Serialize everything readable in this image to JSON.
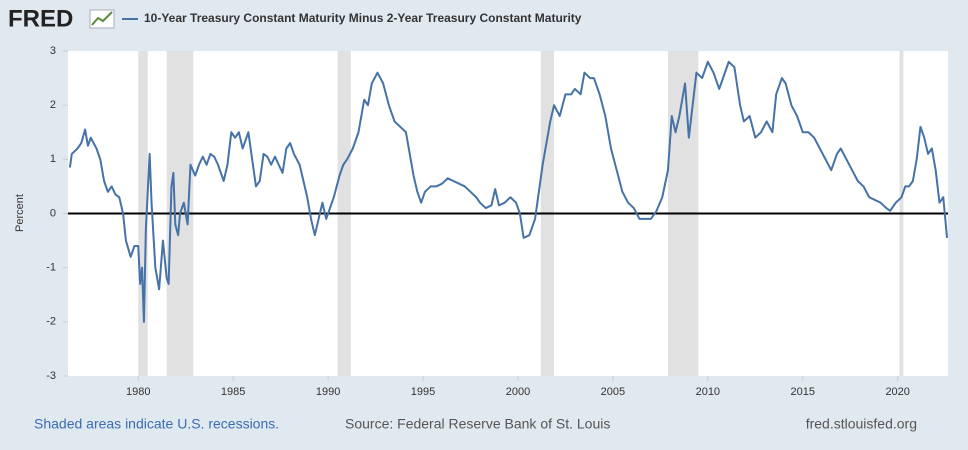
{
  "chart_data": {
    "type": "line",
    "logo": "FRED",
    "ylabel": "Percent",
    "footnote": "Shaded areas indicate U.S. recessions.",
    "source": "Source: Federal Reserve Bank of St. Louis",
    "website": "fred.stlouisfed.org",
    "xlim": [
      1976.3,
      2022.65
    ],
    "ylim": [
      -3,
      3
    ],
    "xticks": [
      1980,
      1985,
      1990,
      1995,
      2000,
      2005,
      2010,
      2015,
      2020
    ],
    "yticks": [
      -3,
      -2,
      -1,
      0,
      1,
      2,
      3
    ],
    "grid": false,
    "recessions": [
      [
        1980.0,
        1980.5
      ],
      [
        1981.5,
        1982.9
      ],
      [
        1990.5,
        1991.2
      ],
      [
        2001.2,
        2001.9
      ],
      [
        2007.9,
        2009.5
      ],
      [
        2020.1,
        2020.3
      ]
    ],
    "x": [
      1976.4,
      1976.5,
      1976.8,
      1977.0,
      1977.2,
      1977.35,
      1977.5,
      1977.8,
      1978.0,
      1978.2,
      1978.4,
      1978.6,
      1978.8,
      1979.0,
      1979.2,
      1979.35,
      1979.6,
      1979.8,
      1980.0,
      1980.1,
      1980.2,
      1980.3,
      1980.4,
      1980.6,
      1980.7,
      1980.9,
      1981.1,
      1981.3,
      1981.5,
      1981.6,
      1981.75,
      1981.85,
      1981.95,
      1982.1,
      1982.2,
      1982.4,
      1982.6,
      1982.75,
      1983.0,
      1983.2,
      1983.4,
      1983.6,
      1983.8,
      1984.0,
      1984.2,
      1984.5,
      1984.7,
      1984.9,
      1985.1,
      1985.3,
      1985.5,
      1985.8,
      1986.0,
      1986.2,
      1986.4,
      1986.6,
      1986.8,
      1987.0,
      1987.2,
      1987.4,
      1987.6,
      1987.8,
      1988.0,
      1988.2,
      1988.5,
      1988.7,
      1988.9,
      1989.1,
      1989.3,
      1989.5,
      1989.7,
      1989.9,
      1990.1,
      1990.3,
      1990.6,
      1990.8,
      1991.0,
      1991.3,
      1991.6,
      1991.9,
      1992.1,
      1992.3,
      1992.6,
      1992.9,
      1993.2,
      1993.5,
      1993.8,
      1994.1,
      1994.3,
      1994.5,
      1994.7,
      1994.9,
      1995.1,
      1995.4,
      1995.7,
      1996.0,
      1996.3,
      1996.6,
      1996.9,
      1997.2,
      1997.5,
      1997.8,
      1998.0,
      1998.3,
      1998.6,
      1998.8,
      1999.0,
      1999.3,
      1999.6,
      1999.9,
      2000.1,
      2000.3,
      2000.6,
      2000.9,
      2001.1,
      2001.3,
      2001.5,
      2001.7,
      2001.9,
      2002.2,
      2002.5,
      2002.8,
      2003.0,
      2003.3,
      2003.5,
      2003.8,
      2004.0,
      2004.3,
      2004.6,
      2004.9,
      2005.2,
      2005.5,
      2005.8,
      2006.1,
      2006.4,
      2006.7,
      2007.0,
      2007.3,
      2007.6,
      2007.9,
      2008.1,
      2008.3,
      2008.5,
      2008.8,
      2009.0,
      2009.2,
      2009.4,
      2009.7,
      2010.0,
      2010.3,
      2010.6,
      2010.9,
      2011.1,
      2011.4,
      2011.7,
      2011.9,
      2012.2,
      2012.5,
      2012.8,
      2013.1,
      2013.4,
      2013.6,
      2013.9,
      2014.1,
      2014.4,
      2014.7,
      2015.0,
      2015.3,
      2015.6,
      2015.9,
      2016.2,
      2016.5,
      2016.8,
      2017.0,
      2017.3,
      2017.6,
      2017.9,
      2018.2,
      2018.5,
      2018.8,
      2019.1,
      2019.4,
      2019.6,
      2019.9,
      2020.2,
      2020.4,
      2020.6,
      2020.8,
      2021.0,
      2021.2,
      2021.4,
      2021.6,
      2021.8,
      2022.0,
      2022.2,
      2022.4,
      2022.6
    ],
    "series": [
      {
        "name": "10-Year Treasury Constant Maturity Minus 2-Year Treasury Constant Maturity",
        "color": "#4572a7",
        "values": [
          0.85,
          1.1,
          1.2,
          1.3,
          1.55,
          1.25,
          1.4,
          1.2,
          1.0,
          0.6,
          0.4,
          0.5,
          0.35,
          0.3,
          0.0,
          -0.5,
          -0.8,
          -0.6,
          -0.6,
          -1.3,
          -1.0,
          -2.0,
          -0.3,
          1.1,
          0.2,
          -1.0,
          -1.4,
          -0.5,
          -1.2,
          -1.3,
          0.5,
          0.75,
          -0.2,
          -0.4,
          0.0,
          0.2,
          -0.2,
          0.9,
          0.7,
          0.9,
          1.05,
          0.9,
          1.1,
          1.05,
          0.9,
          0.6,
          0.9,
          1.5,
          1.4,
          1.5,
          1.2,
          1.5,
          1.0,
          0.5,
          0.6,
          1.1,
          1.05,
          0.9,
          1.05,
          0.9,
          0.75,
          1.2,
          1.3,
          1.1,
          0.9,
          0.6,
          0.3,
          -0.1,
          -0.4,
          -0.1,
          0.2,
          -0.1,
          0.1,
          0.3,
          0.7,
          0.9,
          1.0,
          1.2,
          1.5,
          2.1,
          2.0,
          2.4,
          2.6,
          2.4,
          2.0,
          1.7,
          1.6,
          1.5,
          1.1,
          0.7,
          0.4,
          0.2,
          0.4,
          0.5,
          0.5,
          0.55,
          0.65,
          0.6,
          0.55,
          0.5,
          0.4,
          0.3,
          0.2,
          0.1,
          0.15,
          0.45,
          0.15,
          0.2,
          0.3,
          0.2,
          0.0,
          -0.45,
          -0.4,
          -0.1,
          0.4,
          0.9,
          1.3,
          1.7,
          2.0,
          1.8,
          2.2,
          2.2,
          2.3,
          2.2,
          2.6,
          2.5,
          2.5,
          2.2,
          1.8,
          1.2,
          0.8,
          0.4,
          0.2,
          0.1,
          -0.1,
          -0.1,
          -0.1,
          0.05,
          0.3,
          0.8,
          1.8,
          1.5,
          1.8,
          2.4,
          1.4,
          2.0,
          2.6,
          2.5,
          2.8,
          2.6,
          2.3,
          2.6,
          2.8,
          2.7,
          2.0,
          1.7,
          1.8,
          1.4,
          1.5,
          1.7,
          1.5,
          2.2,
          2.5,
          2.4,
          2.0,
          1.8,
          1.5,
          1.5,
          1.4,
          1.2,
          1.0,
          0.8,
          1.1,
          1.2,
          1.0,
          0.8,
          0.6,
          0.5,
          0.3,
          0.25,
          0.2,
          0.1,
          0.05,
          0.2,
          0.3,
          0.5,
          0.5,
          0.6,
          1.0,
          1.6,
          1.4,
          1.1,
          1.2,
          0.8,
          0.2,
          0.3,
          -0.45
        ]
      }
    ]
  }
}
